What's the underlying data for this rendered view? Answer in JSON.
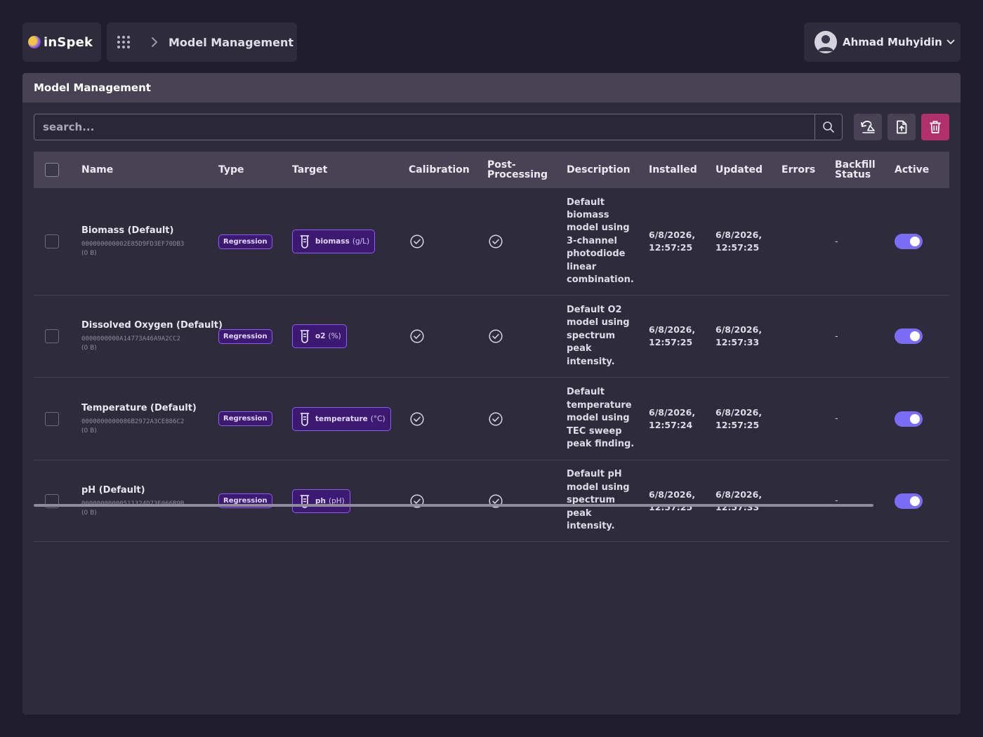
{
  "brand": {
    "logo_text": "inSpek"
  },
  "breadcrumb": {
    "current": "Model Management"
  },
  "user": {
    "name": "Ahmad Muhyidin"
  },
  "panel": {
    "title": "Model Management"
  },
  "search": {
    "placeholder": "search..."
  },
  "toolbar": {
    "icons": [
      "scale-refresh-icon",
      "upload-file-icon",
      "trash-icon"
    ],
    "delete_color": "#b0306c"
  },
  "table": {
    "columns": [
      "Name",
      "Type",
      "Target",
      "Calibration",
      "Post-Processing",
      "Description",
      "Installed",
      "Updated",
      "Errors",
      "Backfill Status",
      "Active"
    ],
    "rows": [
      {
        "name": "Biomass (Default)",
        "id": "000000000002E85D9FD3EF70DB3",
        "size": "(0 B)",
        "type": "Regression",
        "target_name": "biomass",
        "target_unit": "(g/L)",
        "calibration": true,
        "post_processing": true,
        "description": "Default biomass model using 3-channel photodiode linear combination.",
        "installed": "6/8/2026, 12:57:25",
        "updated": "6/8/2026, 12:57:25",
        "errors": "",
        "backfill_status": "-",
        "active": true
      },
      {
        "name": "Dissolved Oxygen (Default)",
        "id": "0000000000A14773A46A9A2CC2",
        "size": "(0 B)",
        "type": "Regression",
        "target_name": "o2",
        "target_unit": "(%)",
        "calibration": true,
        "post_processing": true,
        "description": "Default O2 model using spectrum peak intensity.",
        "installed": "6/8/2026, 12:57:25",
        "updated": "6/8/2026, 12:57:33",
        "errors": "",
        "backfill_status": "-",
        "active": true
      },
      {
        "name": "Temperature (Default)",
        "id": "0000000000086B2972A3CE886C2",
        "size": "(0 B)",
        "type": "Regression",
        "target_name": "temperature",
        "target_unit": "(°C)",
        "calibration": true,
        "post_processing": true,
        "description": "Default temperature model using TEC sweep peak finding.",
        "installed": "6/8/2026, 12:57:24",
        "updated": "6/8/2026, 12:57:25",
        "errors": "",
        "backfill_status": "-",
        "active": true
      },
      {
        "name": "pH (Default)",
        "id": "00000000000511324D73E066B9B",
        "size": "(0 B)",
        "type": "Regression",
        "target_name": "ph",
        "target_unit": "(pH)",
        "calibration": true,
        "post_processing": true,
        "description": "Default pH model using spectrum peak intensity.",
        "installed": "6/8/2026, 12:57:25",
        "updated": "6/8/2026, 12:57:33",
        "errors": "",
        "backfill_status": "-",
        "active": true
      }
    ]
  },
  "colors": {
    "background": "#1f1d2b",
    "panel": "#2e2b3b",
    "header": "#474355",
    "badge": "#3d1a72",
    "badge_border": "#8b5cf6",
    "toggle_on": "#7b6cf6"
  }
}
